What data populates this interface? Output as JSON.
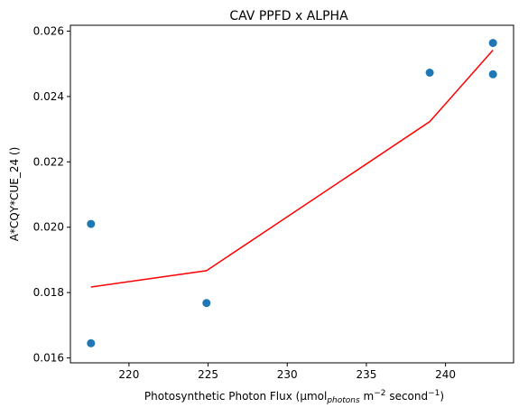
{
  "chart_data": {
    "type": "scatter",
    "title": "CAV PPFD x ALPHA",
    "xlabel": {
      "prefix": "Photosynthetic Photon Flux (µmol",
      "sub": "photons",
      "mid": " m",
      "sup1": "−2",
      "mid2": " second",
      "sup2": "−1",
      "suffix": ")"
    },
    "ylabel": "A*CQY*CUE_24 ()",
    "xlim": [
      216.3,
      244.3
    ],
    "ylim": [
      0.01585,
      0.02618
    ],
    "xticks": [
      220,
      225,
      230,
      235,
      240
    ],
    "yticks": [
      0.016,
      0.018,
      0.02,
      0.022,
      0.024,
      0.026
    ],
    "ytick_labels": [
      "0.016",
      "0.018",
      "0.020",
      "0.022",
      "0.024",
      "0.026"
    ],
    "grid": false,
    "series": [
      {
        "type": "scatter",
        "color": "#1f77b4",
        "points": [
          {
            "x": 217.6,
            "y": 0.0201
          },
          {
            "x": 217.6,
            "y": 0.01645
          },
          {
            "x": 224.9,
            "y": 0.01768
          },
          {
            "x": 239.0,
            "y": 0.02473
          },
          {
            "x": 243.0,
            "y": 0.02564
          },
          {
            "x": 243.0,
            "y": 0.02468
          }
        ]
      },
      {
        "type": "line",
        "color": "#ff0000",
        "points": [
          {
            "x": 217.6,
            "y": 0.01817
          },
          {
            "x": 224.9,
            "y": 0.01867
          },
          {
            "x": 239.0,
            "y": 0.02323
          },
          {
            "x": 243.0,
            "y": 0.02542
          }
        ]
      }
    ]
  }
}
